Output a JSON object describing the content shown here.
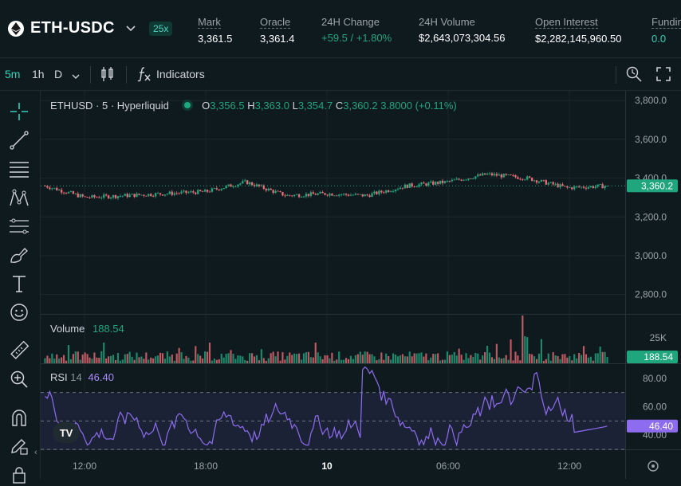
{
  "header": {
    "pair": "ETH-USDC",
    "leverage": "25x",
    "stats": [
      {
        "label": "Mark",
        "value": "3,361.5"
      },
      {
        "label": "Oracle",
        "value": "3,361.4"
      },
      {
        "label": "24H Change",
        "value": "+59.5 / +1.80%"
      },
      {
        "label": "24H Volume",
        "value": "$2,643,073,304.56"
      },
      {
        "label": "Open Interest",
        "value": "$2,282,145,960.50"
      },
      {
        "label": "Funding",
        "value": "0.0"
      }
    ]
  },
  "toolbar": {
    "intervals": [
      "5m",
      "1h",
      "D"
    ],
    "active_interval": "5m",
    "indicators_label": "Indicators"
  },
  "main_legend": {
    "symbol": "ETHUSD · 5 · Hyperliquid",
    "o_label": "O",
    "o": "3,356.5",
    "h_label": "H",
    "h": "3,363.0",
    "l_label": "L",
    "l": "3,354.7",
    "c_label": "C",
    "c": "3,360.2",
    "change": "3.8000 (+0.11%)"
  },
  "price_axis": [
    "3,800.0",
    "3,600.0",
    "3,400.0",
    "3,200.0",
    "3,000.0",
    "2,800.0"
  ],
  "last_price": "3,360.2",
  "volume": {
    "label": "Volume",
    "value": "188.54",
    "axis": "25K"
  },
  "rsi": {
    "label": "RSI",
    "period": "14",
    "value": "46.40",
    "axis": [
      "80.00",
      "60.00",
      "40.00"
    ]
  },
  "time_axis": [
    "12:00",
    "18:00",
    "10",
    "06:00",
    "12:00"
  ],
  "logo_text": "TV",
  "colors": {
    "up": "#1fa67d",
    "down": "#ed6a73",
    "accent": "#2ed3b7",
    "rsi": "#8d6cf0"
  },
  "chart_data": {
    "type": "candlestick",
    "price_range": [
      2700,
      3850
    ],
    "close_levels_by_segment": [
      3360,
      3300,
      3310,
      3320,
      3330,
      3380,
      3310,
      3320,
      3310,
      3360,
      3380,
      3420,
      3400,
      3350,
      3360
    ],
    "rsi_range": [
      30,
      90
    ],
    "rsi_levels": [
      70,
      50,
      30
    ]
  }
}
